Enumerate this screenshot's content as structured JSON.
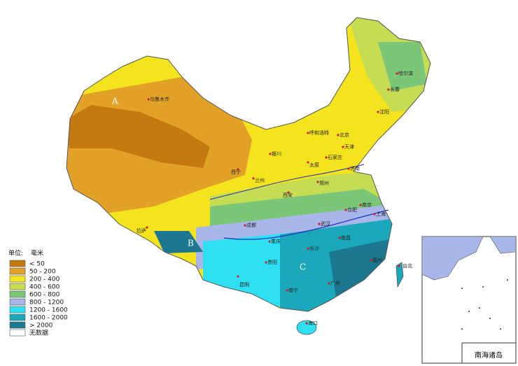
{
  "legend": {
    "title": "单位:",
    "unit": "毫米",
    "items": [
      {
        "label": "< 50",
        "color": "#c47a0e"
      },
      {
        "label": "50 - 200",
        "color": "#e2a228"
      },
      {
        "label": "200 - 400",
        "color": "#f4e41e"
      },
      {
        "label": "400 - 600",
        "color": "#c6dc52"
      },
      {
        "label": "600 - 800",
        "color": "#7cc67a"
      },
      {
        "label": "800 - 1200",
        "color": "#a9b6ea"
      },
      {
        "label": "1200 - 1600",
        "color": "#2ee0f2"
      },
      {
        "label": "1600 - 2000",
        "color": "#1aa8ba"
      },
      {
        "label": "> 2000",
        "color": "#1b7890"
      },
      {
        "label": "无数据",
        "color": "#ffffff"
      }
    ]
  },
  "map": {
    "markers": [
      "A",
      "B",
      "C"
    ],
    "cities": [
      "乌鲁木齐",
      "哈尔滨",
      "长春",
      "沈阳",
      "呼和浩特",
      "北京",
      "天津",
      "石家庄",
      "太原",
      "银川",
      "西宁",
      "兰州",
      "西安",
      "郑州",
      "济南",
      "南京",
      "上海",
      "合肥",
      "武汉",
      "拉萨",
      "成都",
      "重庆",
      "长沙",
      "南昌",
      "福州",
      "台北",
      "贵阳",
      "昆明",
      "南宁",
      "广州",
      "海口"
    ]
  },
  "inset": {
    "label": "南海诸岛"
  }
}
